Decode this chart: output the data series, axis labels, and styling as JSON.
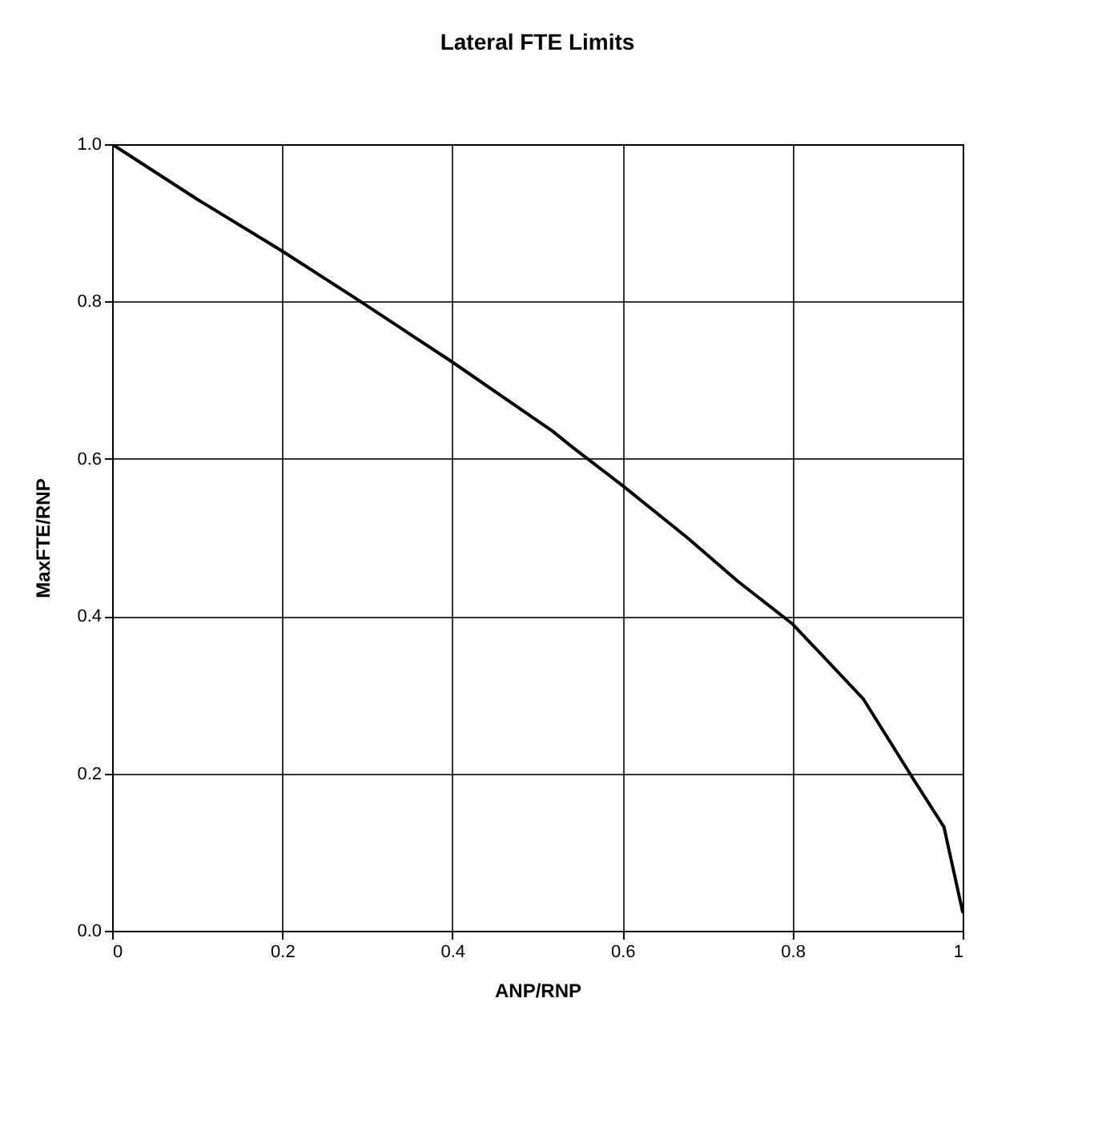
{
  "chart_data": {
    "type": "line",
    "title": "Lateral FTE Limits",
    "xlabel": "ANP/RNP",
    "ylabel": "MaxFTE/RNP",
    "x": [
      0,
      0.1,
      0.2,
      0.292,
      0.4,
      0.518,
      0.541,
      0.6,
      0.676,
      0.736,
      0.8,
      0.883,
      0.942,
      0.978,
      1.0
    ],
    "series": [
      {
        "color": "#000000",
        "values": [
          1.0,
          0.93,
          0.864,
          0.8,
          0.723,
          0.635,
          0.615,
          0.566,
          0.5,
          0.444,
          0.39,
          0.295,
          0.193,
          0.132,
          0.024
        ]
      }
    ],
    "xlim": [
      0,
      1
    ],
    "xticks": [
      {
        "value": 0,
        "label": "0"
      },
      0.2,
      0.4,
      0.6,
      0.8,
      {
        "value": 1,
        "label": "1"
      }
    ],
    "ylim": [
      0,
      1
    ],
    "yticks": [
      {
        "value": 0,
        "label": "0.0"
      },
      0.2,
      0.4,
      0.6,
      0.8,
      {
        "value": 1,
        "label": "1.0"
      }
    ],
    "grid": true,
    "marker": "none",
    "line_style": "solid"
  }
}
